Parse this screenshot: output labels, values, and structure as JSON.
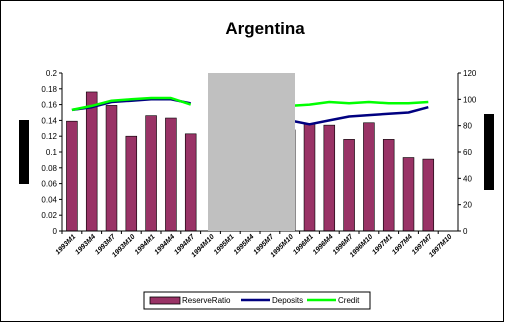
{
  "chart_data": {
    "type": "bar",
    "title": "Argentina",
    "categories": [
      "1993M1",
      "1993M4",
      "1993M7",
      "1993M10",
      "1994M1",
      "1994M4",
      "1994M7",
      "1994M10",
      "1995M1",
      "1995M4",
      "1995M7",
      "1995M10",
      "1996M1",
      "1996M4",
      "1996M7",
      "1996M10",
      "1997M1",
      "1997M4",
      "1997M7",
      "1997M10"
    ],
    "x_tick_labels": [
      "1993M1",
      "1993M4",
      "1993M7",
      "1993M10",
      "1994M1",
      "1994M4",
      "1994M7",
      "1994M10",
      "1995M1",
      "1995M4",
      "1995M7",
      "1995M10",
      "1996M1",
      "1996M4",
      "1996M7",
      "1996M10",
      "1997M1",
      "1997M4",
      "1997M7",
      "1997M10"
    ],
    "series": [
      {
        "name": "ReserveRatio",
        "type": "bar",
        "axis": "left",
        "color": "#993366",
        "values": [
          0.139,
          0.176,
          0.159,
          0.12,
          0.146,
          0.143,
          0.123,
          null,
          null,
          null,
          null,
          0.128,
          0.136,
          0.134,
          0.116,
          0.137,
          0.116,
          0.093,
          0.091,
          null
        ]
      },
      {
        "name": "Deposits",
        "type": "line",
        "axis": "right",
        "color": "#000080",
        "values": [
          92,
          94,
          98,
          99,
          100,
          100,
          97,
          null,
          null,
          null,
          null,
          84,
          81,
          84,
          87,
          88,
          89,
          90,
          94,
          null
        ]
      },
      {
        "name": "Credit",
        "type": "line",
        "axis": "right",
        "color": "#00ff00",
        "values": [
          92,
          95,
          99,
          100,
          101,
          101,
          96,
          null,
          null,
          null,
          null,
          95,
          96,
          98,
          97,
          98,
          97,
          97,
          98,
          null
        ]
      }
    ],
    "y_left": {
      "ylim": [
        0,
        0.2
      ],
      "ticks": [
        "0",
        "0.02",
        "0.04",
        "0.06",
        "0.08",
        "0.1",
        "0.12",
        "0.14",
        "0.16",
        "0.18",
        "0.2"
      ]
    },
    "y_right": {
      "ylim": [
        0,
        120
      ],
      "ticks": [
        "0",
        "20",
        "40",
        "60",
        "80",
        "100",
        "120"
      ]
    },
    "legend_position": "bottom",
    "grid": false
  }
}
